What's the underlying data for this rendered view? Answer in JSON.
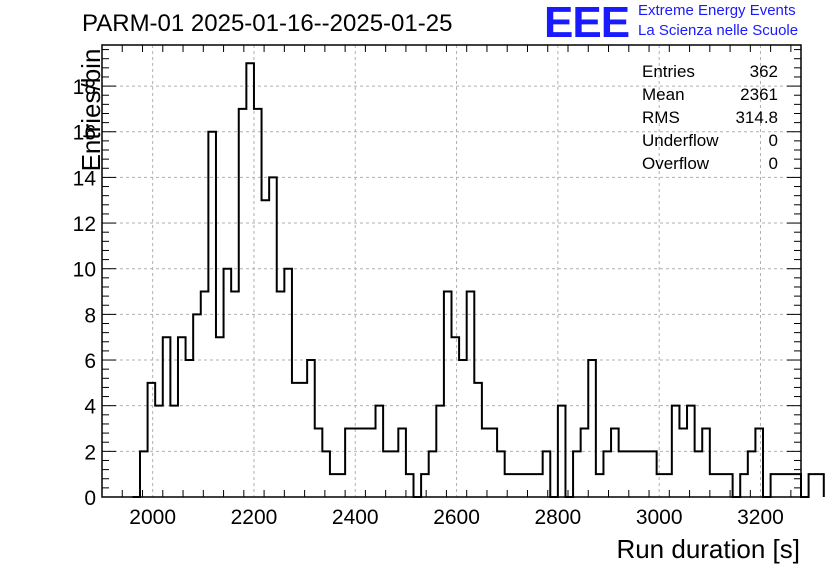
{
  "title": "PARM-01 2025-01-16--2025-01-25",
  "logo": {
    "mark": "EEE",
    "line1": "Extreme Energy Events",
    "line2": "La Scienza nelle Scuole",
    "color": "#1a1aff"
  },
  "stats": [
    {
      "label": "Entries",
      "value": "362"
    },
    {
      "label": "Mean",
      "value": "2361"
    },
    {
      "label": "RMS",
      "value": "314.8"
    },
    {
      "label": "Underflow",
      "value": "0"
    },
    {
      "label": "Overflow",
      "value": "0"
    }
  ],
  "chart_data": {
    "type": "histogram",
    "xlabel": "Run duration [s]",
    "ylabel": "Entries/bin",
    "xlim": [
      1900,
      3280
    ],
    "ylim": [
      0,
      19.8
    ],
    "bin_width": 15,
    "first_bin_low": 1960,
    "values": [
      0,
      2,
      5,
      4,
      7,
      4,
      7,
      6,
      8,
      9,
      16,
      7,
      10,
      9,
      17,
      19,
      17,
      13,
      14,
      9,
      10,
      5,
      5,
      6,
      3,
      2,
      1,
      1,
      3,
      3,
      3,
      3,
      4,
      2,
      2,
      3,
      1,
      0,
      1,
      2,
      4,
      9,
      7,
      6,
      9,
      5,
      3,
      3,
      2,
      1,
      1,
      1,
      1,
      1,
      2,
      0,
      4,
      0,
      2,
      3,
      6,
      1,
      2,
      3,
      2,
      2,
      2,
      2,
      2,
      1,
      1,
      4,
      3,
      4,
      2,
      3,
      1,
      1,
      1,
      0,
      1,
      2,
      3,
      0,
      1,
      1,
      1,
      1,
      0,
      1,
      1
    ],
    "xticks": [
      2000,
      2200,
      2400,
      2600,
      2800,
      3000,
      3200
    ],
    "yticks": [
      0,
      2,
      4,
      6,
      8,
      10,
      12,
      14,
      16,
      18
    ],
    "grid": true,
    "line_color": "#000000",
    "grid_color": "#b0b0b0"
  }
}
